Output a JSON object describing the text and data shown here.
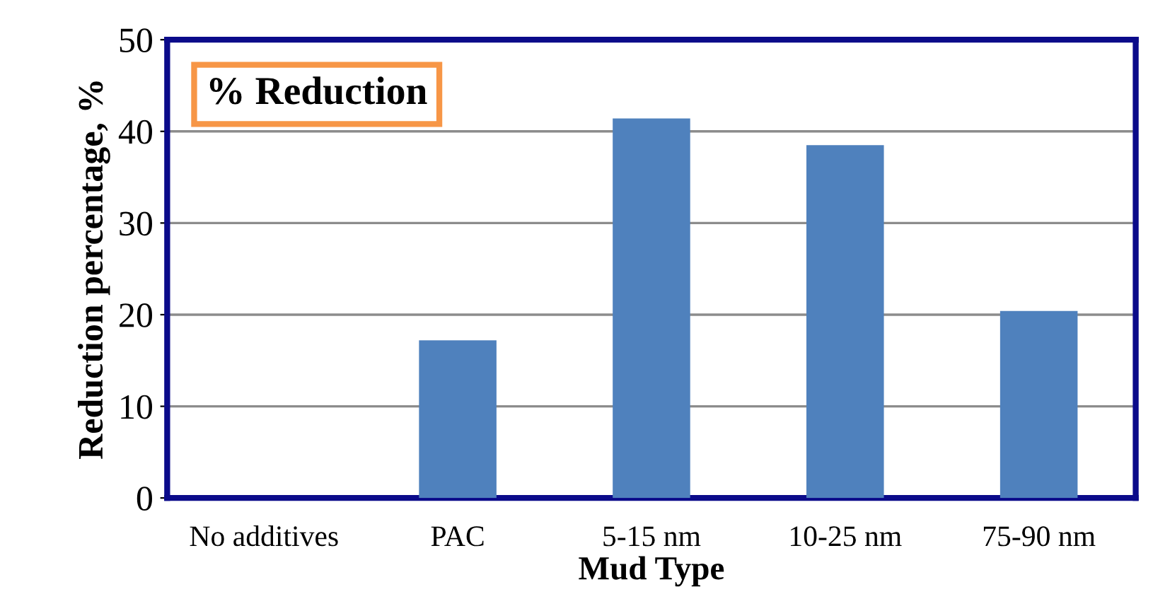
{
  "chart_data": {
    "type": "bar",
    "title": "% Reduction",
    "xlabel": "Mud Type",
    "ylabel": "Reduction percentage, %",
    "categories": [
      "No additives",
      "PAC",
      "5-15 nm",
      "10-25 nm",
      "75-90 nm"
    ],
    "values": [
      0,
      17.2,
      41.4,
      38.5,
      20.4
    ],
    "color": "#4f81bd",
    "ylim": [
      0,
      50
    ],
    "yticks": [
      0,
      10,
      20,
      30,
      40,
      50
    ],
    "grid": "y"
  }
}
